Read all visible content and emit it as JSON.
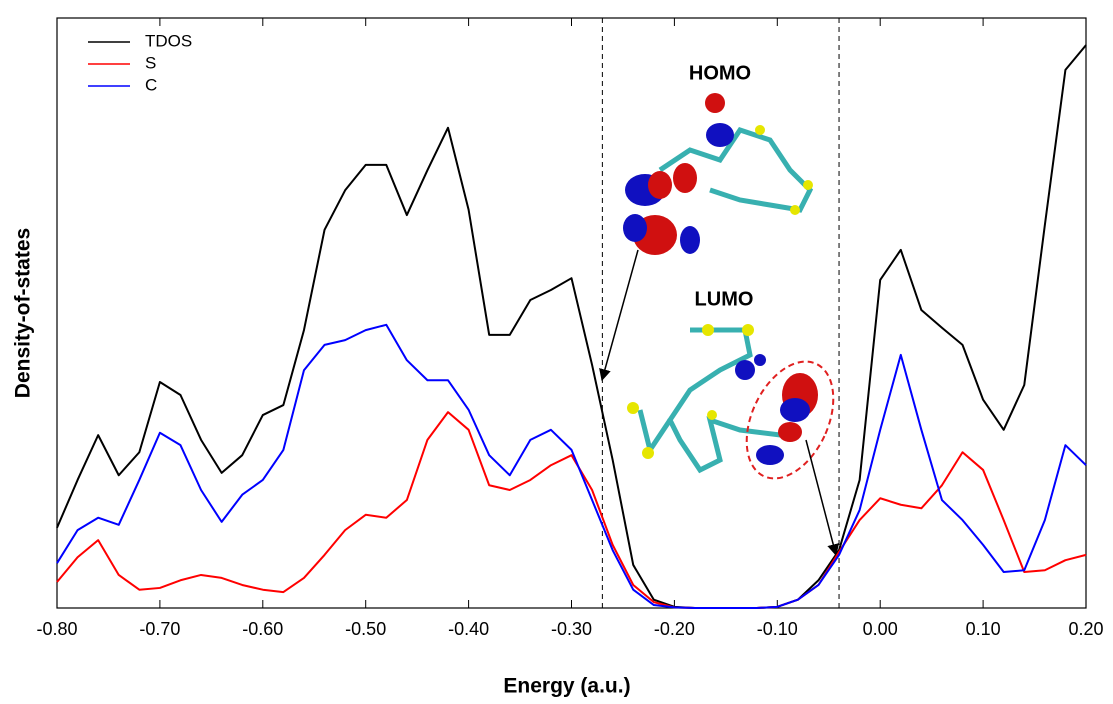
{
  "chart_data": {
    "type": "line",
    "xlabel": "Energy (a.u.)",
    "ylabel": "Density-of-states",
    "x": [
      -0.8,
      -0.78,
      -0.76,
      -0.74,
      -0.72,
      -0.7,
      -0.68,
      -0.66,
      -0.64,
      -0.62,
      -0.6,
      -0.58,
      -0.56,
      -0.54,
      -0.52,
      -0.5,
      -0.48,
      -0.46,
      -0.44,
      -0.42,
      -0.4,
      -0.38,
      -0.36,
      -0.34,
      -0.32,
      -0.3,
      -0.28,
      -0.26,
      -0.24,
      -0.22,
      -0.2,
      -0.18,
      -0.16,
      -0.14,
      -0.12,
      -0.1,
      -0.08,
      -0.06,
      -0.04,
      -0.02,
      0.0,
      0.02,
      0.04,
      0.06,
      0.08,
      0.1,
      0.12,
      0.14,
      0.16,
      0.18,
      0.2
    ],
    "series": [
      {
        "name": "TDOS",
        "color": "#000000",
        "values": [
          13.6,
          21.7,
          29.3,
          22.5,
          26.4,
          38.3,
          36.1,
          28.5,
          22.9,
          25.9,
          32.7,
          34.4,
          47.1,
          64.1,
          70.8,
          75.1,
          75.1,
          66.6,
          74.2,
          81.4,
          67.5,
          46.3,
          46.3,
          52.2,
          53.9,
          55.9,
          41.2,
          25.1,
          7.3,
          1.4,
          0.2,
          0,
          0,
          0,
          0,
          0.2,
          1.4,
          4.7,
          9.8,
          21.7,
          55.6,
          60.7,
          50.5,
          47.5,
          44.6,
          35.3,
          30.2,
          37.8,
          64.9,
          91.2,
          95.4
        ]
      },
      {
        "name": "S",
        "color": "#ff0000",
        "values": [
          4.4,
          8.6,
          11.5,
          5.6,
          3.1,
          3.4,
          4.7,
          5.6,
          5.1,
          3.9,
          3.1,
          2.7,
          5.1,
          9.0,
          13.2,
          15.8,
          15.3,
          18.3,
          28.5,
          33.2,
          30.2,
          20.8,
          20.0,
          21.7,
          24.2,
          25.9,
          20.0,
          10.7,
          3.9,
          1.0,
          0.1,
          0,
          0,
          0,
          0,
          0.2,
          1.4,
          3.9,
          9.5,
          14.9,
          18.6,
          17.5,
          16.9,
          20.8,
          26.4,
          23.4,
          14.9,
          6.1,
          6.4,
          8.1,
          9.0
        ]
      },
      {
        "name": "C",
        "color": "#0000ff",
        "values": [
          7.6,
          13.2,
          15.3,
          14.1,
          21.7,
          29.7,
          27.6,
          20.0,
          14.6,
          19.2,
          21.7,
          26.8,
          40.3,
          44.6,
          45.4,
          47.1,
          48.0,
          42.0,
          38.6,
          38.6,
          33.6,
          25.9,
          22.5,
          28.5,
          30.2,
          26.8,
          18.3,
          9.8,
          3.1,
          0.5,
          0.1,
          0,
          0,
          0,
          0,
          0.2,
          1.4,
          3.9,
          9.0,
          16.6,
          30.2,
          42.9,
          30.2,
          18.3,
          14.9,
          10.7,
          6.1,
          6.4,
          14.9,
          27.6,
          24.2
        ]
      }
    ],
    "xlim": [
      -0.8,
      0.2
    ],
    "xticks": [
      {
        "value": -0.8,
        "label": "-0.80"
      },
      {
        "value": -0.7,
        "label": "-0.70"
      },
      {
        "value": -0.6,
        "label": "-0.60"
      },
      {
        "value": -0.5,
        "label": "-0.50"
      },
      {
        "value": -0.4,
        "label": "-0.40"
      },
      {
        "value": -0.3,
        "label": "-0.30"
      },
      {
        "value": -0.2,
        "label": "-0.20"
      },
      {
        "value": -0.1,
        "label": "-0.10"
      },
      {
        "value": 0.0,
        "label": "0.00"
      },
      {
        "value": 0.1,
        "label": "0.10"
      },
      {
        "value": 0.2,
        "label": "0.20"
      }
    ],
    "ylim": [
      0,
      100
    ],
    "vlines": [
      -0.27,
      -0.04
    ],
    "annotations": [
      "HOMO",
      "LUMO"
    ],
    "legend": "upper left"
  }
}
